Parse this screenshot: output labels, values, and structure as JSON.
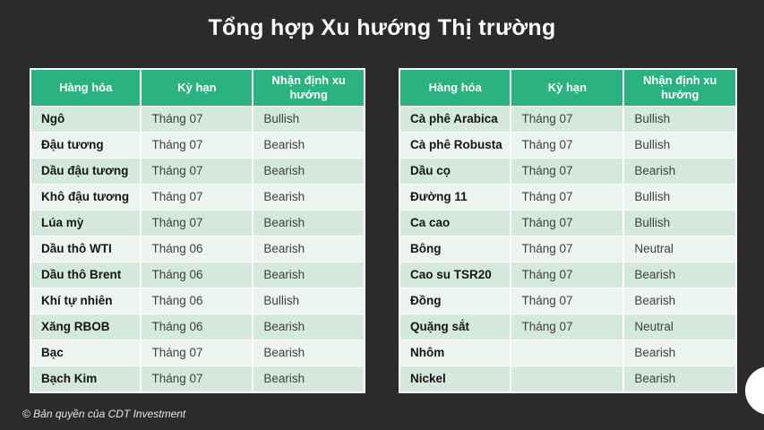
{
  "title": "Tổng hợp Xu hướng Thị trường",
  "footer": {
    "copyright": "© Bản quyền của CDT Investment"
  },
  "colors": {
    "background": "#2b2b2b",
    "accent_green": "#2ab380",
    "row_odd_bg": "#d5e8de",
    "row_even_bg": "#ecf4ef",
    "header_text": "#ffffff"
  },
  "tables": [
    {
      "name": "left-commodities",
      "headers": [
        "Hàng hóa",
        "Kỳ hạn",
        "Nhận định xu hướng"
      ],
      "rows": [
        [
          "Ngô",
          "Tháng 07",
          "Bullish"
        ],
        [
          "Đậu tương",
          "Tháng 07",
          "Bearish"
        ],
        [
          "Dầu đậu tương",
          "Tháng 07",
          "Bearish"
        ],
        [
          "Khô đậu tương",
          "Tháng 07",
          "Bearish"
        ],
        [
          "Lúa mỳ",
          "Tháng 07",
          "Bearish"
        ],
        [
          "Dầu thô WTI",
          "Tháng 06",
          "Bearish"
        ],
        [
          "Dầu thô Brent",
          "Tháng 06",
          "Bearish"
        ],
        [
          "Khí tự nhiên",
          "Tháng 06",
          "Bullish"
        ],
        [
          "Xăng RBOB",
          "Tháng 06",
          "Bearish"
        ],
        [
          "Bạc",
          "Tháng 07",
          "Bearish"
        ],
        [
          "Bạch Kim",
          "Tháng 07",
          "Bearish"
        ]
      ]
    },
    {
      "name": "right-commodities",
      "headers": [
        "Hàng hóa",
        "Kỳ hạn",
        "Nhận định xu hướng"
      ],
      "rows": [
        [
          "Cà phê Arabica",
          "Tháng 07",
          "Bullish"
        ],
        [
          "Cà phê Robusta",
          "Tháng 07",
          "Bullish"
        ],
        [
          "Dầu cọ",
          "Tháng 07",
          "Bearish"
        ],
        [
          "Đường 11",
          "Tháng 07",
          "Bullish"
        ],
        [
          "Ca cao",
          "Tháng 07",
          "Bullish"
        ],
        [
          "Bông",
          "Tháng 07",
          "Neutral"
        ],
        [
          "Cao su TSR20",
          "Tháng 07",
          "Bearish"
        ],
        [
          "Đồng",
          "Tháng 07",
          "Bearish"
        ],
        [
          "Quặng sắt",
          "Tháng 07",
          "Neutral"
        ],
        [
          "Nhôm",
          "",
          "Bearish"
        ],
        [
          "Nickel",
          "",
          "Bearish"
        ]
      ]
    }
  ]
}
